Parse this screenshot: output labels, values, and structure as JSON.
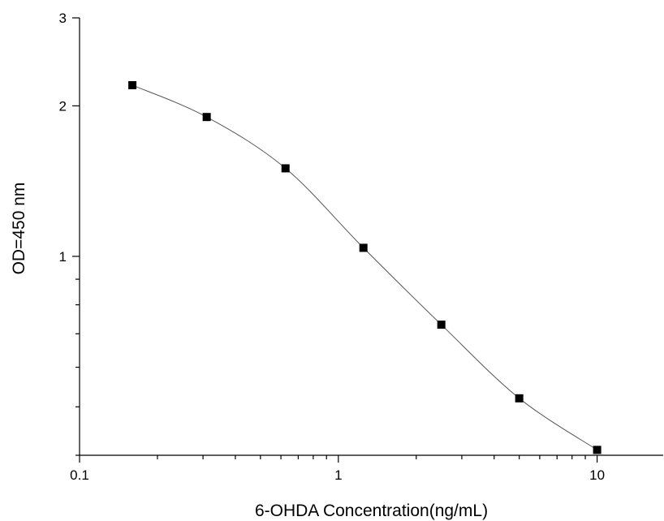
{
  "chart_data": {
    "type": "line",
    "title": "",
    "xlabel": "6-OHDA Concentration(ng/mL)",
    "ylabel": "OD=450 nm",
    "x_scale": "log",
    "y_scale": "log",
    "xlim": [
      0.1,
      18
    ],
    "ylim": [
      0.4,
      3
    ],
    "x_ticks": [
      {
        "value": 0.1,
        "label": "0.1"
      },
      {
        "value": 1,
        "label": "1"
      },
      {
        "value": 10,
        "label": "10"
      }
    ],
    "y_ticks": [
      {
        "value": 1,
        "label": "1"
      },
      {
        "value": 2,
        "label": "2"
      },
      {
        "value": 3,
        "label": "3"
      }
    ],
    "grid": false,
    "legend": "none",
    "marker": "square",
    "line_color": "#555555",
    "marker_color": "#000000",
    "series": [
      {
        "x": [
          0.16,
          0.31,
          0.625,
          1.25,
          2.5,
          5,
          10
        ],
        "y": [
          2.2,
          1.9,
          1.5,
          1.04,
          0.73,
          0.52,
          0.41
        ]
      }
    ]
  }
}
